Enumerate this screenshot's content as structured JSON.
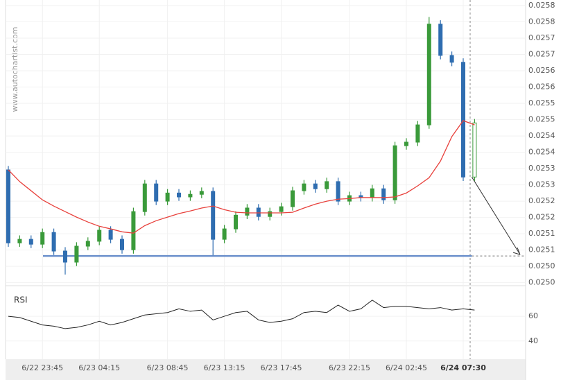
{
  "chart_data": {
    "type": "candlestick",
    "watermark": "www.autochartist.com",
    "categories": [
      null,
      null,
      null,
      "6/22 23:45",
      null,
      null,
      null,
      null,
      "6/23 04:15",
      null,
      null,
      null,
      null,
      null,
      "6/23 08:45",
      null,
      null,
      null,
      null,
      "6/23 13:15",
      null,
      null,
      null,
      null,
      "6/23 17:45",
      null,
      null,
      null,
      null,
      null,
      "6/23 22:15",
      null,
      null,
      null,
      null,
      "6/24 02:45",
      null,
      null,
      null,
      null,
      "6/24 07:30",
      null
    ],
    "open": [
      0.025296,
      0.025072,
      0.025083,
      0.025068,
      0.025104,
      0.025047,
      0.025013,
      0.025062,
      0.025077,
      0.025111,
      0.025083,
      0.025051,
      0.025168,
      0.025253,
      0.0252,
      0.025225,
      0.025213,
      0.025221,
      0.02523,
      0.025083,
      0.025115,
      0.025157,
      0.025179,
      0.025153,
      0.025168,
      0.025183,
      0.025232,
      0.025253,
      0.025238,
      0.02526,
      0.0252,
      0.025217,
      0.025211,
      0.025238,
      0.025204,
      0.02537,
      0.025381,
      0.025434,
      0.025743,
      0.025647,
      0.025626,
      0.025274
    ],
    "high": [
      0.025308,
      0.025095,
      0.025095,
      0.025116,
      0.025116,
      0.025059,
      0.025074,
      0.025089,
      0.025123,
      0.025123,
      0.025095,
      0.02518,
      0.025265,
      0.025265,
      0.025237,
      0.025237,
      0.025233,
      0.025242,
      0.025242,
      0.025127,
      0.025169,
      0.025191,
      0.025191,
      0.02518,
      0.025195,
      0.025244,
      0.025265,
      0.025265,
      0.025272,
      0.025272,
      0.025229,
      0.025229,
      0.02525,
      0.02525,
      0.025382,
      0.025393,
      0.025446,
      0.025765,
      0.025755,
      0.025659,
      0.025638,
      0.025452
    ],
    "low": [
      0.02506,
      0.02506,
      0.025056,
      0.025056,
      0.025035,
      0.024975,
      0.025001,
      0.02505,
      0.025065,
      0.025071,
      0.025039,
      0.025039,
      0.025156,
      0.025188,
      0.025188,
      0.025201,
      0.025201,
      0.025209,
      0.025034,
      0.025071,
      0.025103,
      0.025145,
      0.025141,
      0.025141,
      0.025156,
      0.025171,
      0.02522,
      0.025226,
      0.025226,
      0.025188,
      0.025188,
      0.025199,
      0.025199,
      0.025192,
      0.025192,
      0.025358,
      0.025369,
      0.025422,
      0.025635,
      0.025614,
      0.025262,
      0.025262
    ],
    "close": [
      0.025072,
      0.025083,
      0.025068,
      0.025104,
      0.025047,
      0.025013,
      0.025062,
      0.025077,
      0.025111,
      0.025083,
      0.025051,
      0.025168,
      0.025253,
      0.0252,
      0.025225,
      0.025213,
      0.025221,
      0.02523,
      0.025083,
      0.025115,
      0.025157,
      0.025179,
      0.025153,
      0.025168,
      0.025183,
      0.025232,
      0.025253,
      0.025238,
      0.02526,
      0.0252,
      0.025217,
      0.025211,
      0.025238,
      0.025204,
      0.02537,
      0.025381,
      0.025434,
      0.025743,
      0.025647,
      0.025626,
      0.025274,
      0.02544
    ],
    "up_color": "#3a9a3a",
    "down_color": "#2f6db0",
    "moving_average": {
      "color": "#e8413c",
      "values": [
        0.025296,
        0.02526,
        0.025232,
        0.025204,
        0.025185,
        0.025168,
        0.025151,
        0.025136,
        0.025123,
        0.025115,
        0.025106,
        0.025102,
        0.025125,
        0.02514,
        0.025151,
        0.025162,
        0.02517,
        0.025179,
        0.025185,
        0.025174,
        0.025166,
        0.025164,
        0.025164,
        0.025164,
        0.025164,
        0.025166,
        0.025179,
        0.025191,
        0.0252,
        0.025206,
        0.025208,
        0.025211,
        0.025211,
        0.025211,
        0.025213,
        0.025225,
        0.025247,
        0.025272,
        0.025323,
        0.025398,
        0.025447,
        0.025434
      ]
    },
    "support_level": {
      "value": 0.025032,
      "color": "#6a8fcb"
    },
    "ylim": [
      0.024945,
      0.025817
    ],
    "yticks": [
      {
        "value": 0.0258,
        "label": "0.0258"
      },
      {
        "value": 0.02575,
        "label": "0.0258"
      },
      {
        "value": 0.0257,
        "label": "0.0257"
      },
      {
        "value": 0.02565,
        "label": "0.0257"
      },
      {
        "value": 0.0256,
        "label": "0.0256"
      },
      {
        "value": 0.02555,
        "label": "0.0256"
      },
      {
        "value": 0.0255,
        "label": "0.0255"
      },
      {
        "value": 0.02545,
        "label": "0.0255"
      },
      {
        "value": 0.0254,
        "label": "0.0254"
      },
      {
        "value": 0.02535,
        "label": "0.0254"
      },
      {
        "value": 0.0253,
        "label": "0.0253"
      },
      {
        "value": 0.02525,
        "label": "0.0253"
      },
      {
        "value": 0.0252,
        "label": "0.0252"
      },
      {
        "value": 0.02515,
        "label": "0.0252"
      },
      {
        "value": 0.0251,
        "label": "0.0251"
      },
      {
        "value": 0.02505,
        "label": "0.0251"
      },
      {
        "value": 0.025,
        "label": "0.0250"
      },
      {
        "value": 0.02495,
        "label": "0.0250"
      }
    ],
    "rsi": {
      "label": "RSI",
      "color": "#222",
      "ylim": [
        27,
        83
      ],
      "yticks": [
        40,
        60
      ],
      "values": [
        60,
        59,
        56,
        53,
        52,
        50,
        51,
        53,
        56,
        53,
        55,
        58,
        61,
        62,
        63,
        66,
        64,
        65,
        57,
        60,
        63,
        64,
        57,
        55,
        56,
        58,
        63,
        64,
        63,
        69,
        64,
        66,
        73,
        67,
        68,
        68,
        67,
        66,
        67,
        65,
        66,
        65
      ]
    }
  }
}
